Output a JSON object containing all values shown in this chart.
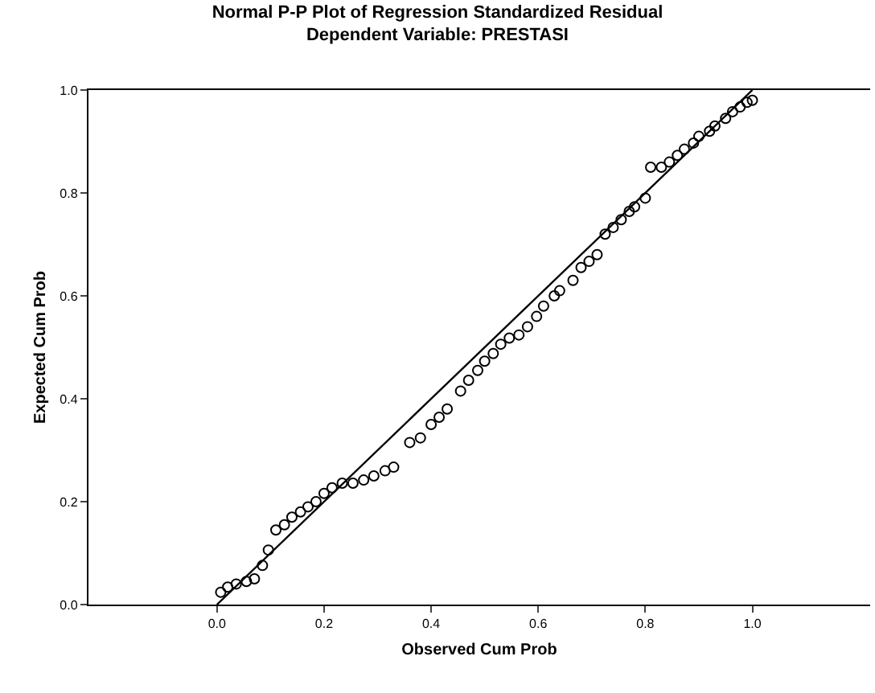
{
  "chart_data": {
    "type": "scatter",
    "title": "Normal P-P Plot of Regression Standardized Residual",
    "subtitle": "Dependent Variable: PRESTASI",
    "xlabel": "Observed Cum Prob",
    "ylabel": "Expected Cum Prob",
    "xlim": [
      -0.24,
      1.22
    ],
    "ylim": [
      0,
      1
    ],
    "xticks": [
      {
        "value": 0,
        "label": "0.0"
      },
      {
        "value": 0.2,
        "label": "0.2"
      },
      {
        "value": 0.4,
        "label": "0.4"
      },
      {
        "value": 0.6,
        "label": "0.6"
      },
      {
        "value": 0.8,
        "label": "0.8"
      },
      {
        "value": 1,
        "label": "1.0"
      }
    ],
    "yticks": [
      {
        "value": 0,
        "label": "0.0"
      },
      {
        "value": 0.2,
        "label": "0.2"
      },
      {
        "value": 0.4,
        "label": "0.4"
      },
      {
        "value": 0.6,
        "label": "0.6"
      },
      {
        "value": 0.8,
        "label": "0.8"
      },
      {
        "value": 1,
        "label": "1.0"
      }
    ],
    "grid": false,
    "series": [
      {
        "marker": "circle",
        "color": "#000000",
        "x": [
          0.007,
          0.02,
          0.036,
          0.055,
          0.07,
          0.085,
          0.096,
          0.11,
          0.126,
          0.14,
          0.156,
          0.17,
          0.185,
          0.2,
          0.215,
          0.234,
          0.254,
          0.274,
          0.293,
          0.314,
          0.33,
          0.36,
          0.38,
          0.4,
          0.415,
          0.43,
          0.455,
          0.47,
          0.487,
          0.5,
          0.516,
          0.53,
          0.546,
          0.564,
          0.58,
          0.597,
          0.61,
          0.63,
          0.64,
          0.665,
          0.68,
          0.695,
          0.71,
          0.725,
          0.74,
          0.755,
          0.77,
          0.78,
          0.8,
          0.81,
          0.83,
          0.845,
          0.86,
          0.873,
          0.89,
          0.9,
          0.92,
          0.93,
          0.95,
          0.963,
          0.977,
          0.99,
          1.0
        ],
        "values": [
          0.024,
          0.034,
          0.04,
          0.045,
          0.05,
          0.076,
          0.106,
          0.145,
          0.155,
          0.17,
          0.18,
          0.19,
          0.2,
          0.216,
          0.227,
          0.236,
          0.236,
          0.242,
          0.25,
          0.26,
          0.267,
          0.315,
          0.324,
          0.35,
          0.364,
          0.38,
          0.415,
          0.436,
          0.455,
          0.473,
          0.488,
          0.506,
          0.518,
          0.524,
          0.54,
          0.56,
          0.58,
          0.6,
          0.61,
          0.63,
          0.655,
          0.667,
          0.68,
          0.72,
          0.733,
          0.748,
          0.764,
          0.773,
          0.79,
          0.85,
          0.85,
          0.86,
          0.873,
          0.885,
          0.897,
          0.91,
          0.92,
          0.93,
          0.945,
          0.958,
          0.967,
          0.976,
          0.98
        ]
      },
      {
        "type": "line",
        "marker": "none",
        "color": "#000000",
        "x": [
          0,
          1
        ],
        "values": [
          0,
          1
        ]
      }
    ]
  }
}
